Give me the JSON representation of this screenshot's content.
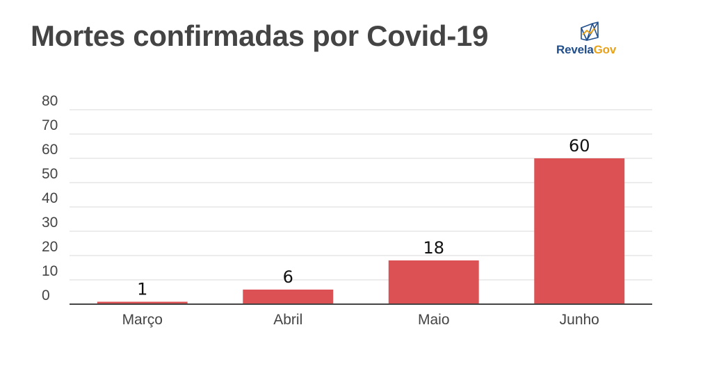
{
  "title": "Mortes confirmadas por Covid-19",
  "logo": {
    "part1": "Revela",
    "part2": "Gov",
    "icon": "revelagov-logo-icon"
  },
  "colors": {
    "bar": "#dc5153",
    "grid": "#d9d9d9",
    "axis": "#444444",
    "text": "#444444",
    "logo_blue": "#1f4e8c",
    "logo_orange": "#e8a21a"
  },
  "chart_data": {
    "type": "bar",
    "title": "Mortes confirmadas por Covid-19",
    "categories": [
      "Março",
      "Abril",
      "Maio",
      "Junho"
    ],
    "values": [
      1,
      6,
      18,
      60
    ],
    "data_labels": [
      "1",
      "6",
      "18",
      "60"
    ],
    "xlabel": "",
    "ylabel": "",
    "ylim": [
      0,
      80
    ],
    "yticks": [
      0,
      10,
      20,
      30,
      40,
      50,
      60,
      70,
      80
    ],
    "grid": true,
    "legend": "none"
  }
}
